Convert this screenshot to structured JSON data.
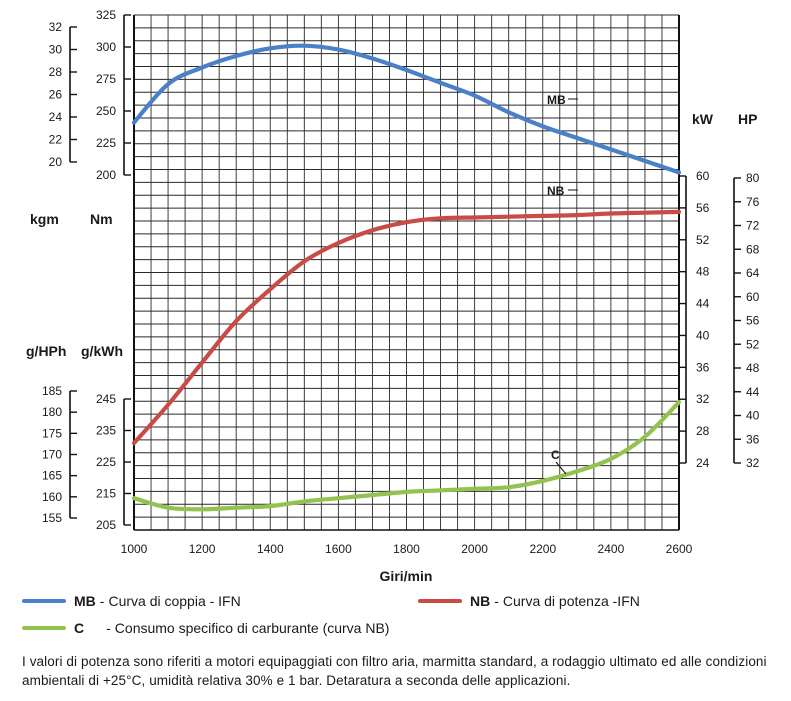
{
  "chart_data": {
    "type": "line",
    "xlabel": "Giri/min",
    "x_ticks": [
      1000,
      1200,
      1400,
      1600,
      1800,
      2000,
      2200,
      2400,
      2600
    ],
    "xlim": [
      1000,
      2600
    ],
    "axes": {
      "kgm": {
        "unit": "kgm",
        "range": [
          20,
          32
        ],
        "ticks": [
          20,
          22,
          24,
          26,
          28,
          30,
          32
        ]
      },
      "nm": {
        "unit": "Nm",
        "range": [
          200,
          325
        ],
        "ticks": [
          200,
          225,
          250,
          275,
          300,
          325
        ]
      },
      "kw": {
        "unit": "kW",
        "range": [
          24,
          60
        ],
        "ticks": [
          24,
          28,
          32,
          36,
          40,
          44,
          48,
          52,
          56,
          60
        ]
      },
      "hp": {
        "unit": "HP",
        "range": [
          32,
          80
        ],
        "ticks": [
          32,
          36,
          40,
          44,
          48,
          52,
          56,
          60,
          64,
          68,
          72,
          76,
          80
        ]
      },
      "ghph": {
        "unit": "g/HPh",
        "range": [
          155,
          185
        ],
        "ticks": [
          155,
          160,
          165,
          170,
          175,
          180,
          185
        ]
      },
      "gkwh": {
        "unit": "g/kWh",
        "range": [
          205,
          245
        ],
        "ticks": [
          205,
          215,
          225,
          235,
          245
        ]
      }
    },
    "series": [
      {
        "code": "MB",
        "name": "Curva di coppia - IFN",
        "axis": "Nm",
        "color": "#4a80c8",
        "x": [
          1000,
          1100,
          1200,
          1300,
          1400,
          1500,
          1600,
          1700,
          1800,
          1900,
          2000,
          2100,
          2200,
          2300,
          2400,
          2500,
          2600
        ],
        "y": [
          241,
          271,
          284,
          293,
          299,
          301,
          298,
          291,
          282,
          272,
          262,
          249,
          238,
          229,
          220,
          211,
          202
        ]
      },
      {
        "code": "NB",
        "name": "Curva di potenza -IFN",
        "axis": "kW",
        "color": "#c94b45",
        "x": [
          1000,
          1100,
          1200,
          1300,
          1400,
          1500,
          1600,
          1700,
          1800,
          1900,
          2000,
          2100,
          2200,
          2300,
          2400,
          2500,
          2600
        ],
        "y": [
          26.5,
          31.3,
          36.6,
          41.8,
          45.8,
          49.3,
          51.6,
          53.2,
          54.2,
          54.7,
          54.8,
          54.9,
          55.0,
          55.1,
          55.3,
          55.4,
          55.5
        ]
      },
      {
        "code": "C",
        "name": "Consumo specifico di carburante (curva NB)",
        "axis": "g/kWh",
        "color": "#93c24e",
        "x": [
          1000,
          1100,
          1200,
          1300,
          1400,
          1500,
          1600,
          1700,
          1800,
          1900,
          2000,
          2100,
          2200,
          2300,
          2400,
          2500,
          2600
        ],
        "y": [
          213.5,
          210.5,
          210,
          210.5,
          211,
          212.5,
          213.5,
          214.5,
          215.5,
          216,
          216.5,
          217,
          219,
          222,
          226,
          233,
          244
        ]
      }
    ],
    "curve_labels": [
      "MB",
      "NB",
      "C"
    ],
    "legend": [
      {
        "code": "MB",
        "sep": "-",
        "text": "Curva di coppia - IFN",
        "color": "#4a80c8"
      },
      {
        "code": "NB",
        "sep": "-",
        "text": "Curva di potenza -IFN",
        "color": "#c94b45"
      },
      {
        "code": "C",
        "sep": "-",
        "text": "Consumo specifico di carburante (curva NB)",
        "color": "#93c24e"
      }
    ],
    "footnote": "I valori di potenza sono riferiti a motori equipaggiati con filtro aria, marmitta standard, a rodaggio ultimato ed alle condizioni ambientali di +25°C, umidità relativa 30% e 1 bar. Detaratura a seconda delle applicazioni."
  }
}
